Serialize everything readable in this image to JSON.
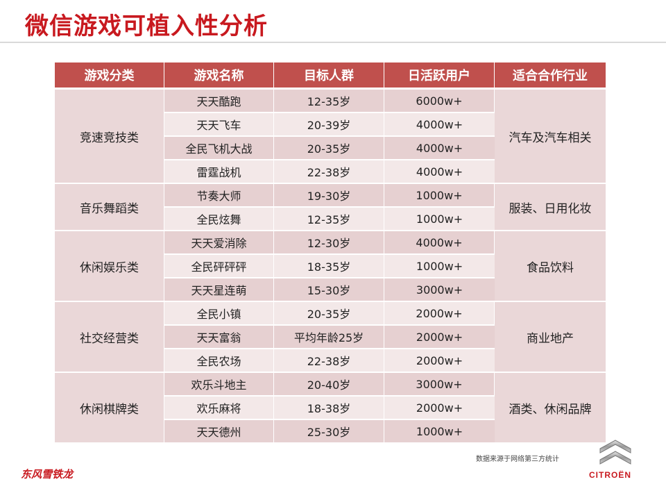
{
  "title": "微信游戏可植入性分析",
  "table": {
    "headers": [
      "游戏分类",
      "游戏名称",
      "目标人群",
      "日活跃用户",
      "适合合作行业"
    ],
    "groups": [
      {
        "category": "竞速竞技类",
        "industry": "汽车及汽车相关",
        "rows": [
          {
            "name": "天天酷跑",
            "age": "12-35岁",
            "dau": "6000w+"
          },
          {
            "name": "天天飞车",
            "age": "20-39岁",
            "dau": "4000w+"
          },
          {
            "name": "全民飞机大战",
            "age": "20-35岁",
            "dau": "4000w+"
          },
          {
            "name": "雷霆战机",
            "age": "22-38岁",
            "dau": "4000w+"
          }
        ]
      },
      {
        "category": "音乐舞蹈类",
        "industry": "服装、日用化妆",
        "rows": [
          {
            "name": "节奏大师",
            "age": "19-30岁",
            "dau": "1000w+"
          },
          {
            "name": "全民炫舞",
            "age": "12-35岁",
            "dau": "1000w+"
          }
        ]
      },
      {
        "category": "休闲娱乐类",
        "industry": "食品饮料",
        "rows": [
          {
            "name": "天天爱消除",
            "age": "12-30岁",
            "dau": "4000w+"
          },
          {
            "name": "全民砰砰砰",
            "age": "18-35岁",
            "dau": "1000w+"
          },
          {
            "name": "天天星连萌",
            "age": "15-30岁",
            "dau": "3000w+"
          }
        ]
      },
      {
        "category": "社交经营类",
        "industry": "商业地产",
        "rows": [
          {
            "name": "全民小镇",
            "age": "20-35岁",
            "dau": "2000w+"
          },
          {
            "name": "天天富翁",
            "age": "平均年龄25岁",
            "dau": "2000w+"
          },
          {
            "name": "全民农场",
            "age": "22-38岁",
            "dau": "2000w+"
          }
        ]
      },
      {
        "category": "休闲棋牌类",
        "industry": "酒类、休闲品牌",
        "rows": [
          {
            "name": "欢乐斗地主",
            "age": "20-40岁",
            "dau": "3000w+"
          },
          {
            "name": "欢乐麻将",
            "age": "18-38岁",
            "dau": "2000w+"
          },
          {
            "name": "天天德州",
            "age": "25-30岁",
            "dau": "1000w+"
          }
        ]
      }
    ]
  },
  "footer": {
    "source_note": "数据来源于网络第三方统计",
    "left_brand": "东风雪铁龙",
    "right_brand": "CITROËN"
  },
  "colors": {
    "title": "#c8191f",
    "header_bg": "#c0504d",
    "row_dark": "#e6d0d1",
    "row_light": "#f3e8e8"
  },
  "icons": {
    "logo": "citroen-double-chevron-icon"
  }
}
